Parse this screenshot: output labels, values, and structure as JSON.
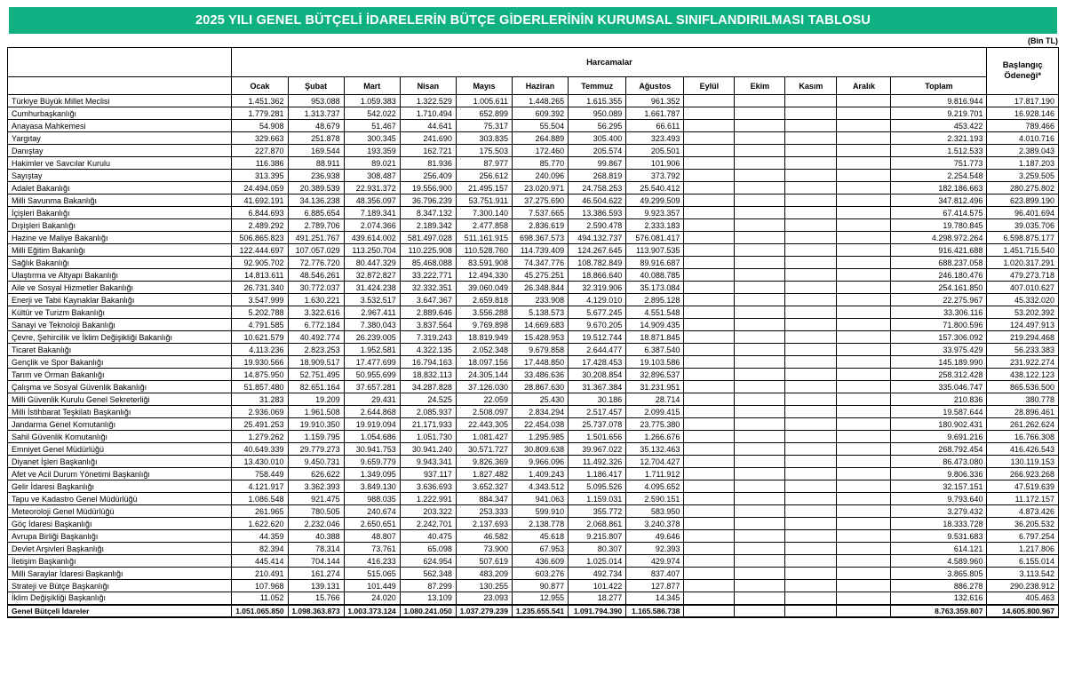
{
  "page": {
    "title": "2025 YILI GENEL BÜTÇELİ İDARELERİN BÜTÇE GİDERLERİNİN KURUMSAL SINIFLANDIRILMASI TABLOSU",
    "unit_label": "(Bin TL)"
  },
  "colors": {
    "banner_green": "#0fb183",
    "border": "#000000",
    "text": "#000000"
  },
  "table": {
    "group_header": "Harcamalar",
    "month_headers": [
      "Ocak",
      "Şubat",
      "Mart",
      "Nisan",
      "Mayıs",
      "Haziran",
      "Temmuz",
      "Ağustos",
      "Eylül",
      "Ekim",
      "Kasım",
      "Aralık"
    ],
    "toplam_header": "Toplam",
    "baslangic_header": "Başlangıç Ödeneği*",
    "rows": [
      {
        "name": "Türkiye Büyük Millet Meclisi",
        "values": [
          "1.451.362",
          "953.088",
          "1.059.383",
          "1.322.529",
          "1.005.611",
          "1.448.265",
          "1.615.355",
          "961.352",
          "",
          "",
          "",
          "",
          "9.816.944",
          "17.817.190"
        ]
      },
      {
        "name": "Cumhurbaşkanlığı",
        "values": [
          "1.779.281",
          "1.313.737",
          "542.022",
          "1.710.494",
          "652.899",
          "609.392",
          "950.089",
          "1.661.787",
          "",
          "",
          "",
          "",
          "9.219.701",
          "16.928.146"
        ]
      },
      {
        "name": "Anayasa Mahkemesi",
        "values": [
          "54.908",
          "48.679",
          "51.467",
          "44.641",
          "75.317",
          "55.504",
          "56.295",
          "66.611",
          "",
          "",
          "",
          "",
          "453.422",
          "789.466"
        ]
      },
      {
        "name": "Yargıtay",
        "values": [
          "329.663",
          "251.878",
          "300.345",
          "241.690",
          "303.835",
          "264.889",
          "305.400",
          "323.493",
          "",
          "",
          "",
          "",
          "2.321.193",
          "4.010.716"
        ]
      },
      {
        "name": "Danıştay",
        "values": [
          "227.870",
          "169.544",
          "193.359",
          "162.721",
          "175.503",
          "172.460",
          "205.574",
          "205.501",
          "",
          "",
          "",
          "",
          "1.512.533",
          "2.389.043"
        ]
      },
      {
        "name": "Hakimler ve Savcılar Kurulu",
        "values": [
          "116.386",
          "88.911",
          "89.021",
          "81.936",
          "87.977",
          "85.770",
          "99.867",
          "101.906",
          "",
          "",
          "",
          "",
          "751.773",
          "1.187.203"
        ]
      },
      {
        "name": "Sayıştay",
        "values": [
          "313.395",
          "236.938",
          "308.487",
          "256.409",
          "256.612",
          "240.096",
          "268.819",
          "373.792",
          "",
          "",
          "",
          "",
          "2.254.548",
          "3.259.505"
        ]
      },
      {
        "name": "Adalet Bakanlığı",
        "values": [
          "24.494.059",
          "20.389.539",
          "22.931.372",
          "19.556.900",
          "21.495.157",
          "23.020.971",
          "24.758.253",
          "25.540.412",
          "",
          "",
          "",
          "",
          "182.186.663",
          "280.275.802"
        ]
      },
      {
        "name": "Milli Savunma Bakanlığı",
        "values": [
          "41.692.191",
          "34.136.238",
          "48.356.097",
          "36.796.239",
          "53.751.911",
          "37.275.690",
          "46.504.622",
          "49.299.509",
          "",
          "",
          "",
          "",
          "347.812.496",
          "623.899.190"
        ]
      },
      {
        "name": "İçişleri Bakanlığı",
        "values": [
          "6.844.693",
          "6.885.654",
          "7.189.341",
          "8.347.132",
          "7.300.140",
          "7.537.665",
          "13.386.593",
          "9.923.357",
          "",
          "",
          "",
          "",
          "67.414.575",
          "96.401.694"
        ]
      },
      {
        "name": "Dışişleri Bakanlığı",
        "values": [
          "2.489.292",
          "2.789.706",
          "2.074.366",
          "2.189.342",
          "2.477.858",
          "2.836.619",
          "2.590.478",
          "2.333.183",
          "",
          "",
          "",
          "",
          "19.780.845",
          "39.035.706"
        ]
      },
      {
        "name": "Hazine ve Maliye Bakanlığı",
        "values": [
          "506.865.823",
          "491.251.767",
          "439.614.002",
          "581.497.028",
          "511.161.915",
          "698.367.573",
          "494.132.737",
          "576.081.417",
          "",
          "",
          "",
          "",
          "4.298.972.264",
          "6.598.875.177"
        ]
      },
      {
        "name": "Milli Eğitim Bakanlığı",
        "values": [
          "122.444.697",
          "107.057.029",
          "113.250.704",
          "110.225.908",
          "110.528.760",
          "114.739.409",
          "124.267.645",
          "113.907.535",
          "",
          "",
          "",
          "",
          "916.421.688",
          "1.451.715.540"
        ]
      },
      {
        "name": "Sağlık Bakanlığı",
        "values": [
          "92.905.702",
          "72.776.720",
          "80.447.329",
          "85.468.088",
          "83.591.908",
          "74.347.776",
          "108.782.849",
          "89.916.687",
          "",
          "",
          "",
          "",
          "688.237.058",
          "1.020.317.291"
        ]
      },
      {
        "name": "Ulaştırma ve Altyapı Bakanlığı",
        "values": [
          "14.813.611",
          "48.546.261",
          "32.872.827",
          "33.222.771",
          "12.494.330",
          "45.275.251",
          "18.866.640",
          "40.088.785",
          "",
          "",
          "",
          "",
          "246.180.476",
          "479.273.718"
        ]
      },
      {
        "name": "Aile ve Sosyal Hizmetler Bakanlığı",
        "values": [
          "26.731.340",
          "30.772.037",
          "31.424.238",
          "32.332.351",
          "39.060.049",
          "26.348.844",
          "32.319.906",
          "35.173.084",
          "",
          "",
          "",
          "",
          "254.161.850",
          "407.010.627"
        ]
      },
      {
        "name": "Enerji ve Tabii Kaynaklar Bakanlığı",
        "values": [
          "3.547.999",
          "1.630.221",
          "3.532.517",
          "3.647.367",
          "2.659.818",
          "233.908",
          "4.129.010",
          "2.895.128",
          "",
          "",
          "",
          "",
          "22.275.967",
          "45.332.020"
        ]
      },
      {
        "name": "Kültür ve Turizm Bakanlığı",
        "values": [
          "5.202.788",
          "3.322.616",
          "2.967.411",
          "2.889.646",
          "3.556.288",
          "5.138.573",
          "5.677.245",
          "4.551.548",
          "",
          "",
          "",
          "",
          "33.306.116",
          "53.202.392"
        ]
      },
      {
        "name": "Sanayi ve Teknoloji Bakanlığı",
        "values": [
          "4.791.585",
          "6.772.184",
          "7.380.043",
          "3.837.564",
          "9.769.898",
          "14.669.683",
          "9.670.205",
          "14.909.435",
          "",
          "",
          "",
          "",
          "71.800.596",
          "124.497.913"
        ]
      },
      {
        "name": "Çevre, Şehircilik ve İklim Değişikliği Bakanlığı",
        "values": [
          "10.621.579",
          "40.492.774",
          "26.239.005",
          "7.319.243",
          "18.819.949",
          "15.428.953",
          "19.512.744",
          "18.871.845",
          "",
          "",
          "",
          "",
          "157.306.092",
          "219.294.468"
        ]
      },
      {
        "name": "Ticaret Bakanlığı",
        "values": [
          "4.113.236",
          "2.823.253",
          "1.952.581",
          "4.322.135",
          "2.052.348",
          "9.679.858",
          "2.644.477",
          "6.387.540",
          "",
          "",
          "",
          "",
          "33.975.429",
          "56.233.383"
        ]
      },
      {
        "name": "Gençlik ve Spor Bakanlığı",
        "values": [
          "19.930.566",
          "18.909.517",
          "17.477.699",
          "16.794.163",
          "18.097.156",
          "17.448.850",
          "17.428.453",
          "19.103.586",
          "",
          "",
          "",
          "",
          "145.189.990",
          "231.922.274"
        ]
      },
      {
        "name": "Tarım ve Orman Bakanlığı",
        "values": [
          "14.875.950",
          "52.751.495",
          "50.955.699",
          "18.832.113",
          "24.305.144",
          "33.486.636",
          "30.208.854",
          "32.896.537",
          "",
          "",
          "",
          "",
          "258.312.428",
          "438.122.123"
        ]
      },
      {
        "name": "Çalışma ve Sosyal Güvenlik Bakanlığı",
        "values": [
          "51.857.480",
          "82.651.164",
          "37.657.281",
          "34.287.828",
          "37.126.030",
          "28.867.630",
          "31.367.384",
          "31.231.951",
          "",
          "",
          "",
          "",
          "335.046.747",
          "865.536.500"
        ]
      },
      {
        "name": "Milli Güvenlik Kurulu Genel Sekreterliği",
        "values": [
          "31.283",
          "19.209",
          "29.431",
          "24.525",
          "22.059",
          "25.430",
          "30.186",
          "28.714",
          "",
          "",
          "",
          "",
          "210.836",
          "380.778"
        ]
      },
      {
        "name": "Milli İstihbarat Teşkilatı Başkanlığı",
        "values": [
          "2.936.069",
          "1.961.508",
          "2.644.868",
          "2.085.937",
          "2.508.097",
          "2.834.294",
          "2.517.457",
          "2.099.415",
          "",
          "",
          "",
          "",
          "19.587.644",
          "28.896.461"
        ]
      },
      {
        "name": "Jandarma Genel Komutanlığı",
        "values": [
          "25.491.253",
          "19.910.350",
          "19.919.094",
          "21.171.933",
          "22.443.305",
          "22.454.038",
          "25.737.078",
          "23.775.380",
          "",
          "",
          "",
          "",
          "180.902.431",
          "261.262.624"
        ]
      },
      {
        "name": "Sahil Güvenlik Komutanlığı",
        "values": [
          "1.279.262",
          "1.159.795",
          "1.054.686",
          "1.051.730",
          "1.081.427",
          "1.295.985",
          "1.501.656",
          "1.266.676",
          "",
          "",
          "",
          "",
          "9.691.216",
          "16.766.308"
        ]
      },
      {
        "name": "Emniyet Genel Müdürlüğü",
        "values": [
          "40.649.339",
          "29.779.273",
          "30.941.753",
          "30.941.240",
          "30.571.727",
          "30.809.638",
          "39.967.022",
          "35.132.463",
          "",
          "",
          "",
          "",
          "268.792.454",
          "416.426.543"
        ]
      },
      {
        "name": "Diyanet İşleri Başkanlığı",
        "values": [
          "13.430.010",
          "9.450.731",
          "9.659.779",
          "9.943.341",
          "9.826.369",
          "9.966.096",
          "11.492.326",
          "12.704.427",
          "",
          "",
          "",
          "",
          "86.473.080",
          "130.119.153"
        ]
      },
      {
        "name": "Afet ve Acil Durum Yönetimi Başkanlığı",
        "values": [
          "758.449",
          "626.622",
          "1.349.095",
          "937.117",
          "1.827.482",
          "1.409.243",
          "1.186.417",
          "1.711.912",
          "",
          "",
          "",
          "",
          "9.806.336",
          "266.923.268"
        ]
      },
      {
        "name": "Gelir İdaresi Başkanlığı",
        "values": [
          "4.121.917",
          "3.362.393",
          "3.849.130",
          "3.636.693",
          "3.652.327",
          "4.343.512",
          "5.095.526",
          "4.095.652",
          "",
          "",
          "",
          "",
          "32.157.151",
          "47.519.639"
        ]
      },
      {
        "name": "Tapu ve Kadastro Genel Müdürlüğü",
        "values": [
          "1.086.548",
          "921.475",
          "988.035",
          "1.222.991",
          "884.347",
          "941.063",
          "1.159.031",
          "2.590.151",
          "",
          "",
          "",
          "",
          "9.793.640",
          "11.172.157"
        ]
      },
      {
        "name": "Meteoroloji Genel Müdürlüğü",
        "values": [
          "261.965",
          "780.505",
          "240.674",
          "203.322",
          "253.333",
          "599.910",
          "355.772",
          "583.950",
          "",
          "",
          "",
          "",
          "3.279.432",
          "4.873.426"
        ]
      },
      {
        "name": "Göç İdaresi Başkanlığı",
        "values": [
          "1.622.620",
          "2.232.046",
          "2.650.651",
          "2.242.701",
          "2.137.693",
          "2.138.778",
          "2.068.861",
          "3.240.378",
          "",
          "",
          "",
          "",
          "18.333.728",
          "36.205.532"
        ]
      },
      {
        "name": "Avrupa Birliği Başkanlığı",
        "values": [
          "44.359",
          "40.388",
          "48.807",
          "40.475",
          "46.582",
          "45.618",
          "9.215.807",
          "49.646",
          "",
          "",
          "",
          "",
          "9.531.683",
          "6.797.254"
        ]
      },
      {
        "name": "Devlet Arşivleri Başkanlığı",
        "values": [
          "82.394",
          "78.314",
          "73.761",
          "65.098",
          "73.900",
          "67.953",
          "80.307",
          "92.393",
          "",
          "",
          "",
          "",
          "614.121",
          "1.217.806"
        ]
      },
      {
        "name": "İletişim Başkanlığı",
        "values": [
          "445.414",
          "704.144",
          "416.233",
          "624.954",
          "507.619",
          "436.609",
          "1.025.014",
          "429.974",
          "",
          "",
          "",
          "",
          "4.589.960",
          "6.155.014"
        ]
      },
      {
        "name": "Milli Saraylar İdaresi Başkanlığı",
        "values": [
          "210.491",
          "161.274",
          "515.065",
          "562.348",
          "483.209",
          "603.276",
          "492.734",
          "837.407",
          "",
          "",
          "",
          "",
          "3.865.805",
          "3.113.542"
        ]
      },
      {
        "name": "Strateji ve Bütçe Başkanlığı",
        "values": [
          "107.968",
          "139.131",
          "101.449",
          "87.299",
          "130.255",
          "90.877",
          "101.422",
          "127.877",
          "",
          "",
          "",
          "",
          "886.278",
          "290.238.912"
        ]
      },
      {
        "name": "İklim Değişikliği Başkanlığı",
        "values": [
          "11.052",
          "15.766",
          "24.020",
          "13.109",
          "23.093",
          "12.955",
          "18.277",
          "14.345",
          "",
          "",
          "",
          "",
          "132.616",
          "405.463"
        ]
      }
    ],
    "total_row": {
      "name": "Genel Bütçeli İdareler",
      "values": [
        "1.051.065.850",
        "1.098.363.873",
        "1.003.373.124",
        "1.080.241.050",
        "1.037.279.239",
        "1.235.655.541",
        "1.091.794.390",
        "1.165.586.738",
        "",
        "",
        "",
        "",
        "8.763.359.807",
        "14.605.800.967"
      ]
    }
  }
}
